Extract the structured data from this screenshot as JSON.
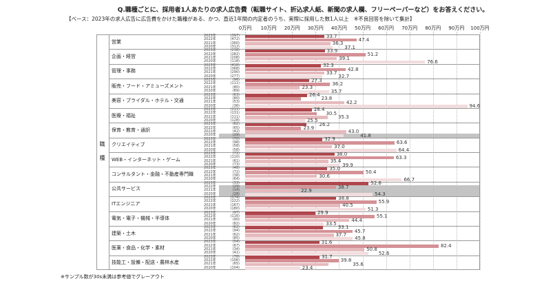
{
  "title": "Q.職種ごとに、採用者1人あたりの求人広告費（転職サイト、折込求人紙、新聞の求人欄、フリーペーパーなど）をお答えください。",
  "subtitle": "【ベース：2023年の求人広告に広告費をかけた職種がある、かつ、直近1年間の内定者のうち、実際に採用した数1人以上　※不良回答を除いて集計】",
  "footnote": "※サンプル数が30s未満は参考値でグレーアウト",
  "chart_data": {
    "type": "bar",
    "orientation": "horizontal",
    "unit": "万円",
    "xlim": [
      0,
      100
    ],
    "x_ticks": [
      "0万円",
      "10万円",
      "20万円",
      "30万円",
      "40万円",
      "50万円",
      "60万円",
      "70万円",
      "80万円",
      "90万円",
      "100万円"
    ],
    "axis_label": "職種",
    "years": [
      "2023年",
      "2022年",
      "2021年",
      "2020年"
    ],
    "colors": [
      "#b0464d",
      "#d49196",
      "#e5babd",
      "#f2dcdd"
    ],
    "grayout_color": "#c4c4c4",
    "categories": [
      {
        "name": "営業",
        "n": [
          "397",
          "472",
          "360",
          "312"
        ],
        "values": [
          33.7,
          47.4,
          36.3,
          37.1
        ],
        "gray": [
          false,
          false,
          false,
          false
        ]
      },
      {
        "name": "企画・経営",
        "n": [
          "238",
          "282",
          "208",
          "118"
        ],
        "values": [
          33.9,
          51.2,
          39.1,
          76.6
        ],
        "gray": [
          false,
          false,
          false,
          false
        ]
      },
      {
        "name": "管理・事務",
        "n": [
          "418",
          "368",
          "290",
          "277"
        ],
        "values": [
          32.3,
          42.8,
          33.7,
          32.7
        ],
        "gray": [
          false,
          false,
          false,
          false
        ]
      },
      {
        "name": "販売・フード・アミューズメント",
        "n": [
          "96",
          "111",
          "80",
          "89"
        ],
        "values": [
          27.3,
          36.2,
          23.3,
          35.7
        ],
        "gray": [
          false,
          false,
          false,
          false
        ]
      },
      {
        "name": "美容・ブライダル・ホテル・交通",
        "n": [
          "63",
          "80",
          "53",
          "36"
        ],
        "values": [
          26.4,
          23.8,
          42.2,
          94.6
        ],
        "gray": [
          false,
          false,
          false,
          false
        ]
      },
      {
        "name": "医療・福祉",
        "n": [
          "111",
          "131",
          "111",
          "128"
        ],
        "values": [
          28.4,
          30.5,
          35.3,
          25.5
        ],
        "gray": [
          false,
          false,
          false,
          false
        ]
      },
      {
        "name": "保育・教育・通訳",
        "n": [
          "62",
          "65",
          "42",
          "29"
        ],
        "values": [
          26.2,
          23.9,
          43.0,
          41.8
        ],
        "gray": [
          false,
          false,
          false,
          true
        ]
      },
      {
        "name": "クリエイティブ",
        "n": [
          "70",
          "98",
          "58",
          "58"
        ],
        "values": [
          32.9,
          63.6,
          37.0,
          64.4
        ],
        "gray": [
          false,
          false,
          false,
          false
        ]
      },
      {
        "name": "WEB・インターネット・ゲーム",
        "n": [
          "72",
          "110",
          "61",
          "73"
        ],
        "values": [
          38.0,
          63.3,
          35.4,
          39.9
        ],
        "gray": [
          false,
          false,
          false,
          false
        ]
      },
      {
        "name": "コンサルタント・金融・不動産専門職",
        "n": [
          "48",
          "72",
          "38",
          "64"
        ],
        "values": [
          35.0,
          50.4,
          30.6,
          66.7
        ],
        "gray": [
          false,
          false,
          false,
          false
        ]
      },
      {
        "name": "公共サービス",
        "n": [
          "33",
          "29",
          "14",
          "28"
        ],
        "values": [
          52.6,
          38.7,
          22.9,
          54.3
        ],
        "gray": [
          false,
          true,
          true,
          true
        ]
      },
      {
        "name": "ITエンジニア",
        "n": [
          "174",
          "222",
          "167",
          "180"
        ],
        "values": [
          38.8,
          55.9,
          40.5,
          51.3
        ],
        "gray": [
          false,
          false,
          false,
          false
        ]
      },
      {
        "name": "電気・電子・機械・半導体",
        "n": [
          "97",
          "116",
          "90",
          "82"
        ],
        "values": [
          29.9,
          55.1,
          44.4,
          33.5
        ],
        "gray": [
          false,
          false,
          false,
          false
        ]
      },
      {
        "name": "建築・土木",
        "n": [
          "62",
          "94",
          "62",
          "85"
        ],
        "values": [
          33.1,
          45.7,
          37.7,
          45.8
        ],
        "gray": [
          false,
          false,
          false,
          false
        ]
      },
      {
        "name": "医薬・食品・化学・素材",
        "n": [
          "54",
          "67",
          "34",
          "41"
        ],
        "values": [
          31.6,
          82.4,
          50.8,
          52.6
        ],
        "gray": [
          false,
          false,
          false,
          false
        ]
      },
      {
        "name": "技能工・設備・配送・農林水産",
        "n": [
          "78",
          "106",
          "65",
          "104"
        ],
        "values": [
          31.7,
          39.8,
          35.6,
          23.4
        ],
        "gray": [
          false,
          false,
          false,
          false
        ]
      }
    ]
  }
}
